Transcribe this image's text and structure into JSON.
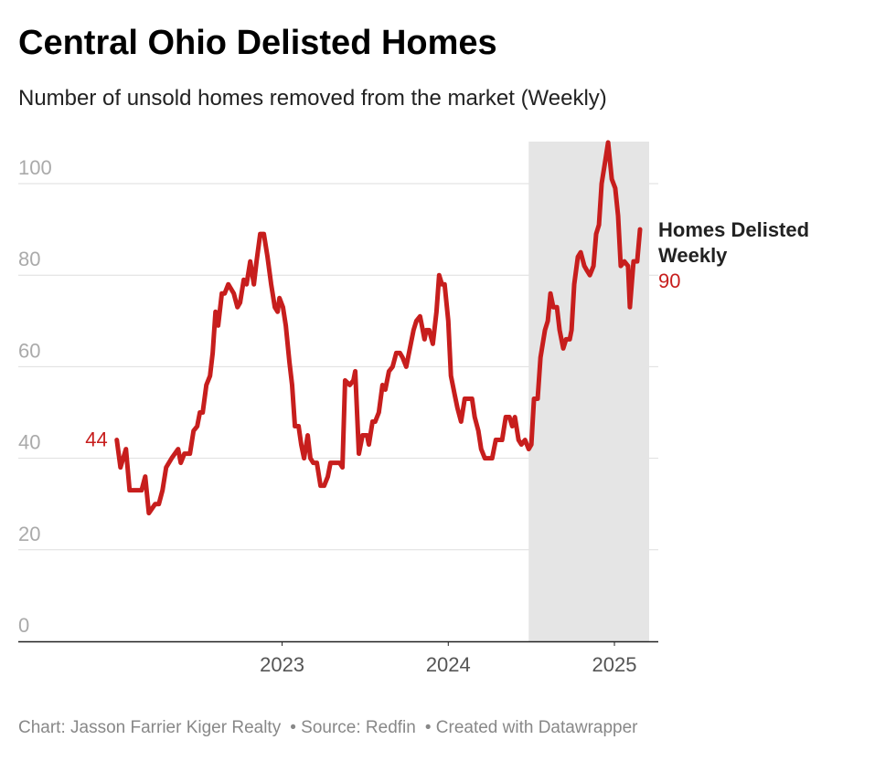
{
  "chart_data": {
    "type": "line",
    "title": "Central Ohio Delisted Homes",
    "subtitle": "Number of unsold homes removed from the market (Weekly)",
    "footer": [
      "Chart: Jasson Farrier Kiger Realty",
      "• Source: Redfin",
      "• Created with Datawrapper"
    ],
    "xlim": [
      2021.412,
      2025.264
    ],
    "xticks": [
      2023,
      2024,
      2025
    ],
    "ylim": [
      0,
      100
    ],
    "yticks": [
      0,
      20,
      40,
      60,
      80,
      100
    ],
    "grid": true,
    "highlight_range": [
      2024.484,
      2025.209
    ],
    "x": [
      2022.005,
      2022.027,
      2022.06,
      2022.082,
      2022.126,
      2022.154,
      2022.176,
      2022.198,
      2022.236,
      2022.258,
      2022.28,
      2022.302,
      2022.335,
      2022.374,
      2022.39,
      2022.412,
      2022.445,
      2022.467,
      2022.489,
      2022.505,
      2022.522,
      2022.544,
      2022.566,
      2022.582,
      2022.599,
      2022.615,
      2022.637,
      2022.654,
      2022.676,
      2022.709,
      2022.731,
      2022.747,
      2022.769,
      2022.786,
      2022.808,
      2022.83,
      2022.846,
      2022.868,
      2022.89,
      2022.912,
      2022.934,
      2022.956,
      2022.973,
      2022.984,
      2023.005,
      2023.022,
      2023.044,
      2023.06,
      2023.077,
      2023.099,
      2023.115,
      2023.132,
      2023.154,
      2023.17,
      2023.187,
      2023.209,
      2023.231,
      2023.253,
      2023.275,
      2023.291,
      2023.319,
      2023.346,
      2023.363,
      2023.379,
      2023.407,
      2023.429,
      2023.44,
      2023.462,
      2023.484,
      2023.511,
      2023.522,
      2023.544,
      2023.56,
      2023.582,
      2023.604,
      2023.621,
      2023.643,
      2023.665,
      2023.687,
      2023.709,
      2023.725,
      2023.747,
      2023.769,
      2023.791,
      2023.808,
      2023.83,
      2023.841,
      2023.857,
      2023.868,
      2023.885,
      2023.907,
      2023.929,
      2023.945,
      2023.962,
      2023.978,
      2024.0,
      2024.016,
      2024.038,
      2024.055,
      2024.077,
      2024.099,
      2024.121,
      2024.143,
      2024.159,
      2024.181,
      2024.198,
      2024.22,
      2024.242,
      2024.264,
      2024.286,
      2024.308,
      2024.324,
      2024.346,
      2024.368,
      2024.385,
      2024.401,
      2024.423,
      2024.44,
      2024.462,
      2024.484,
      2024.5,
      2024.516,
      2024.538,
      2024.555,
      2024.582,
      2024.599,
      2024.615,
      2024.632,
      2024.654,
      2024.67,
      2024.692,
      2024.709,
      2024.731,
      2024.742,
      2024.758,
      2024.78,
      2024.797,
      2024.819,
      2024.835,
      2024.852,
      2024.874,
      2024.89,
      2024.907,
      2024.923,
      2024.945,
      2024.962,
      2024.984,
      2025.005,
      2025.022,
      2025.038,
      2025.06,
      2025.082,
      2025.093,
      2025.115,
      2025.137,
      2025.154
    ],
    "series": [
      {
        "name": "Homes Delisted Weekly",
        "color": "#c71e1d",
        "values": [
          44,
          38,
          42,
          33,
          33,
          33,
          36,
          28,
          30,
          30,
          33,
          38,
          40,
          42,
          39,
          41,
          41,
          46,
          47,
          50,
          50,
          56,
          58,
          63,
          72,
          69,
          76,
          76,
          78,
          76,
          73,
          74,
          79,
          78,
          83,
          78,
          83,
          89,
          89,
          84,
          78,
          73,
          72,
          75,
          73,
          69,
          61,
          56,
          47,
          47,
          43,
          40,
          45,
          40,
          39,
          39,
          34,
          34,
          36,
          39,
          39,
          39,
          38,
          57,
          56,
          57,
          59,
          41,
          45,
          45,
          43,
          48,
          48,
          50,
          56,
          55,
          59,
          60,
          63,
          63,
          62,
          60,
          64,
          68,
          70,
          71,
          69,
          66,
          68,
          68,
          65,
          72,
          80,
          78,
          78,
          70,
          58,
          54,
          51,
          48,
          53,
          53,
          53,
          49,
          46,
          42,
          40,
          40,
          40,
          44,
          44,
          44,
          49,
          49,
          47,
          49,
          44,
          43,
          44,
          42,
          43,
          53,
          53,
          62,
          68,
          70,
          76,
          73,
          73,
          68,
          64,
          66,
          66,
          68,
          78,
          84,
          85,
          82,
          81,
          80,
          82,
          89,
          91,
          100,
          105,
          109,
          101,
          99,
          93,
          82,
          83,
          82,
          73,
          83,
          83,
          90
        ]
      }
    ]
  }
}
